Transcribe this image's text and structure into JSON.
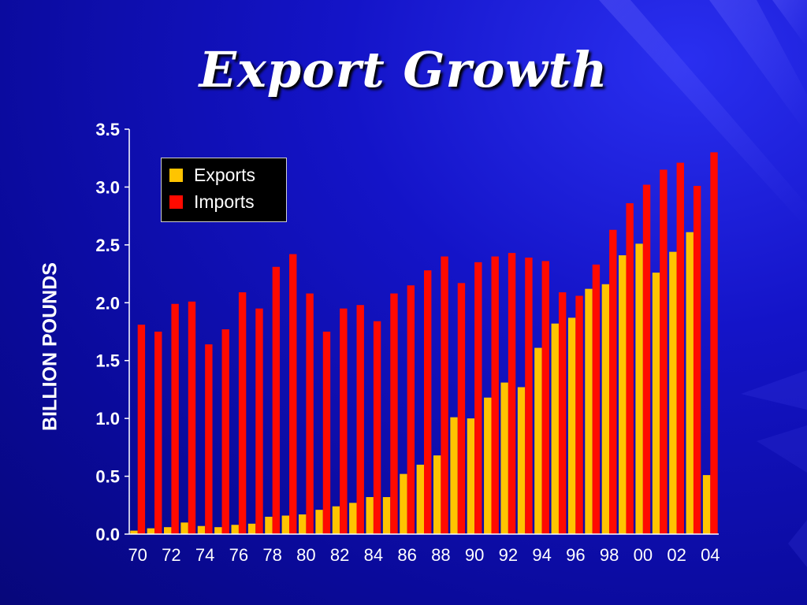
{
  "slide": {
    "title": "Export Growth",
    "background": "#1414c8"
  },
  "legend": {
    "items": [
      {
        "label": "Exports",
        "color": "#ffc400"
      },
      {
        "label": "Imports",
        "color": "#ff0a00"
      }
    ],
    "placement": "top-left"
  },
  "chart_data": {
    "type": "bar",
    "ylabel": "BILLION POUNDS",
    "xlabel": "",
    "ylim": [
      0,
      3.5
    ],
    "yticks": [
      "0.0",
      "0.5",
      "1.0",
      "1.5",
      "2.0",
      "2.5",
      "3.0",
      "3.5"
    ],
    "categories": [
      "70",
      "71",
      "72",
      "73",
      "74",
      "75",
      "76",
      "77",
      "78",
      "79",
      "80",
      "81",
      "82",
      "83",
      "84",
      "85",
      "86",
      "87",
      "88",
      "89",
      "90",
      "91",
      "92",
      "93",
      "94",
      "95",
      "96",
      "97",
      "98",
      "99",
      "00",
      "01",
      "02",
      "03",
      "04"
    ],
    "xtick_labels": [
      "70",
      "72",
      "74",
      "76",
      "78",
      "80",
      "82",
      "84",
      "86",
      "88",
      "90",
      "92",
      "94",
      "96",
      "98",
      "00",
      "02",
      "04"
    ],
    "grid": false,
    "series": [
      {
        "name": "Exports",
        "color": "#ffc400",
        "values": [
          0.03,
          0.05,
          0.06,
          0.1,
          0.07,
          0.06,
          0.08,
          0.09,
          0.15,
          0.16,
          0.17,
          0.21,
          0.24,
          0.27,
          0.32,
          0.32,
          0.52,
          0.6,
          0.68,
          1.01,
          1.0,
          1.18,
          1.31,
          1.27,
          1.61,
          1.82,
          1.87,
          2.12,
          2.16,
          2.41,
          2.51,
          2.26,
          2.44,
          2.61,
          0.51
        ]
      },
      {
        "name": "Imports",
        "color": "#ff0a00",
        "values": [
          1.81,
          1.75,
          1.99,
          2.01,
          1.64,
          1.77,
          2.09,
          1.95,
          2.31,
          2.42,
          2.08,
          1.75,
          1.95,
          1.98,
          1.84,
          2.08,
          2.15,
          2.28,
          2.4,
          2.17,
          2.35,
          2.4,
          2.43,
          2.39,
          2.36,
          2.09,
          2.06,
          2.33,
          2.63,
          2.86,
          3.02,
          3.15,
          3.21,
          3.01,
          3.3
        ]
      }
    ]
  }
}
